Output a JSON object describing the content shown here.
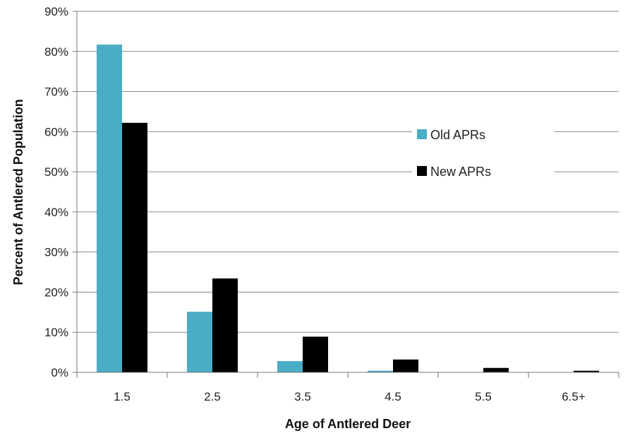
{
  "chart_data": {
    "type": "bar",
    "title": "",
    "xlabel": "Age of Antlered Deer",
    "ylabel": "Percent of Antlered Population",
    "categories": [
      "1.5",
      "2.5",
      "3.5",
      "4.5",
      "5.5",
      "6.5+"
    ],
    "series": [
      {
        "name": "Old APRs",
        "color": "#4bacc6",
        "values": [
          81.7,
          15.1,
          2.8,
          0.4,
          0.0,
          0.0
        ]
      },
      {
        "name": "New APRs",
        "color": "#000000",
        "values": [
          62.2,
          23.4,
          8.9,
          3.2,
          1.1,
          0.4
        ]
      }
    ],
    "ylim": [
      0,
      90
    ],
    "yticks": [
      0,
      10,
      20,
      30,
      40,
      50,
      60,
      70,
      80,
      90
    ],
    "ytick_format": "percent",
    "grid": true,
    "legend_position": "right"
  }
}
